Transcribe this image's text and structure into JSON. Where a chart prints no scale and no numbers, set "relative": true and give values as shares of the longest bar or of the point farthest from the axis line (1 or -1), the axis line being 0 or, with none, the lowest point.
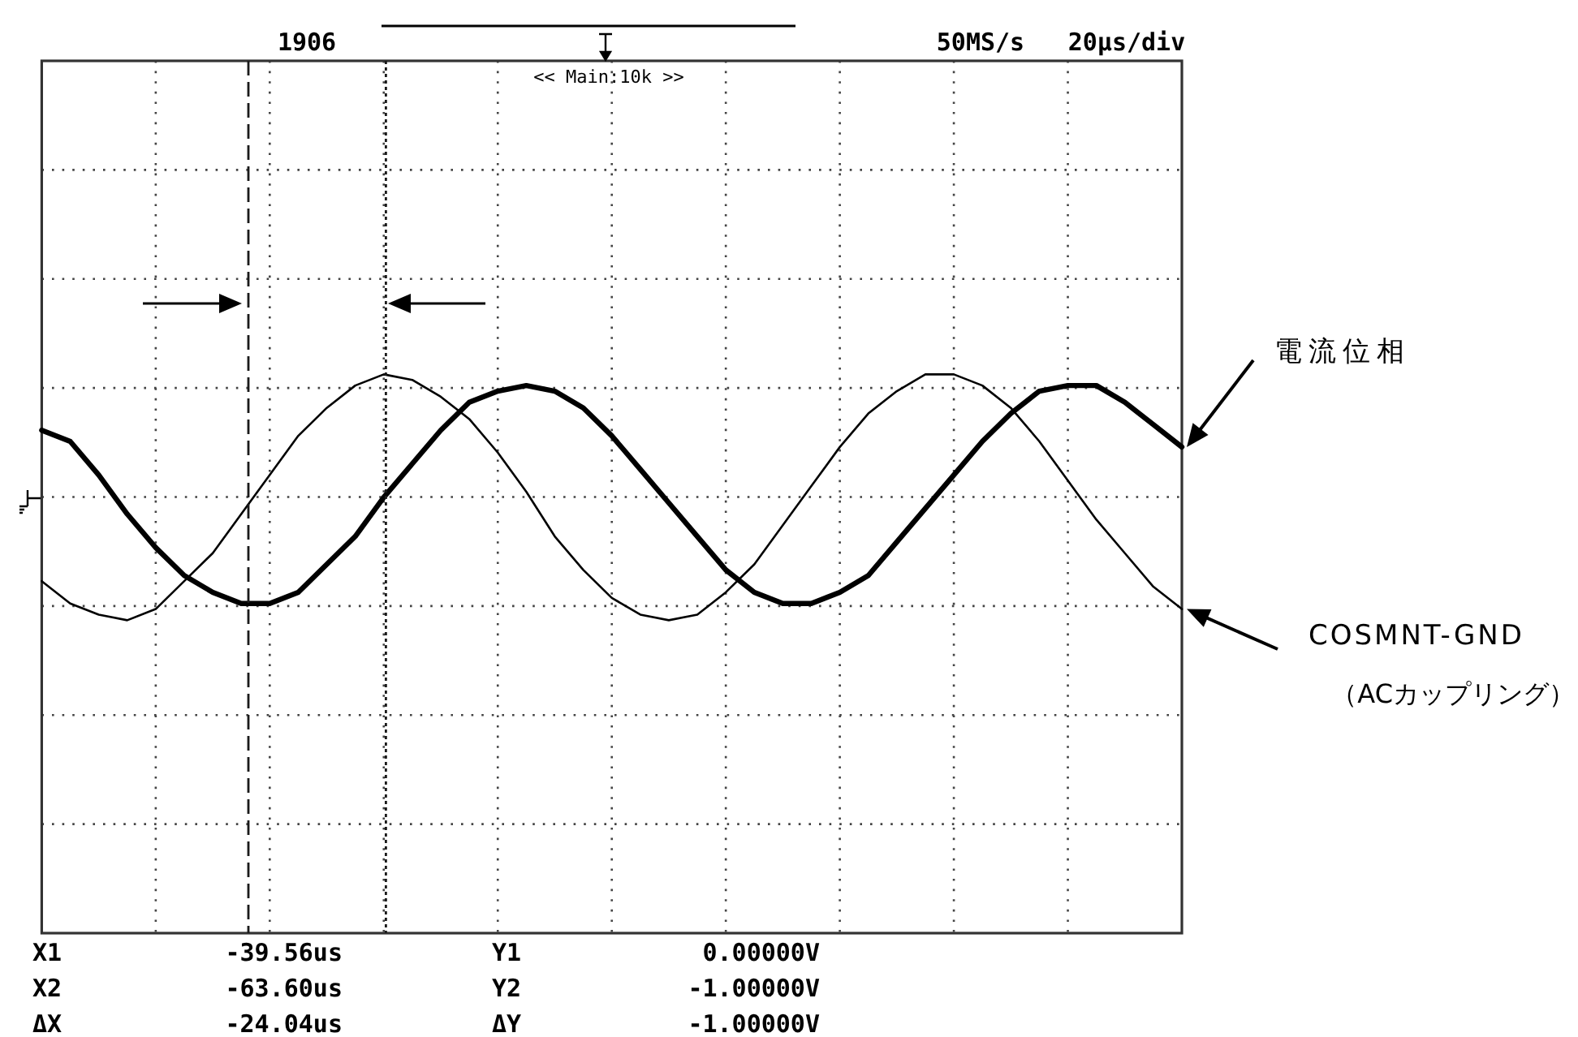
{
  "chart_data": {
    "type": "line",
    "relative": true,
    "grid": true,
    "legend": "right",
    "categories": [
      null,
      null,
      null,
      null,
      null,
      null,
      null,
      null,
      null,
      null,
      null,
      null,
      null,
      null,
      null,
      null,
      null,
      null,
      null,
      null,
      null,
      null,
      null,
      null,
      null,
      null,
      null,
      null,
      null,
      null,
      null,
      null,
      null,
      null,
      null,
      null,
      null,
      null,
      null,
      null,
      null
    ],
    "series": [
      {
        "name": "電流位相",
        "color": "#000000",
        "values": [
          0.9,
          0.88,
          0.82,
          0.75,
          0.69,
          0.64,
          0.61,
          0.59,
          0.59,
          0.61,
          0.66,
          0.71,
          0.78,
          0.84,
          0.9,
          0.95,
          0.97,
          0.98,
          0.97,
          0.94,
          0.89,
          0.83,
          0.77,
          0.71,
          0.65,
          0.61,
          0.59,
          0.59,
          0.61,
          0.64,
          0.7,
          0.76,
          0.82,
          0.88,
          0.93,
          0.97,
          0.98,
          0.98,
          0.95,
          0.91,
          0.87
        ]
      },
      {
        "name": "COSMNT-GND",
        "color": "#000000",
        "values": [
          0.63,
          0.59,
          0.57,
          0.56,
          0.58,
          0.63,
          0.68,
          0.75,
          0.82,
          0.89,
          0.94,
          0.98,
          1.0,
          0.99,
          0.96,
          0.92,
          0.86,
          0.79,
          0.71,
          0.65,
          0.6,
          0.57,
          0.56,
          0.57,
          0.61,
          0.66,
          0.73,
          0.8,
          0.87,
          0.93,
          0.97,
          1.0,
          1.0,
          0.98,
          0.94,
          0.88,
          0.81,
          0.74,
          0.68,
          0.62,
          0.58
        ]
      }
    ],
    "annotations": [
      "1906",
      "<< Main:10k >>",
      "50MS/s",
      "20μs/div",
      "（ACカップリング）",
      "X1",
      "-39.56us",
      "Y1",
      "0.00000V",
      "X2",
      "-63.60us",
      "Y2",
      "-1.00000V",
      "ΔX",
      "-24.04us",
      "ΔY",
      "-1.00000V"
    ]
  }
}
